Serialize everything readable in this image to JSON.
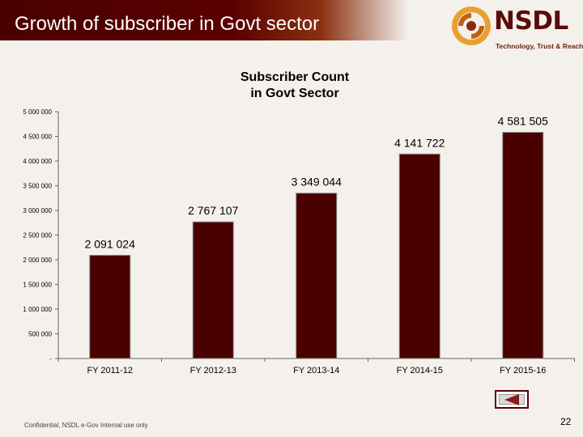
{
  "header": {
    "title": "Growth of subscriber in Govt sector"
  },
  "logo": {
    "name": "NSDL",
    "tagline": "Technology, Trust & Reach"
  },
  "colors": {
    "bar": "#4b0000",
    "header": "#5a0000"
  },
  "chart_data": {
    "type": "bar",
    "title_lines": [
      "Subscriber Count",
      "in Govt Sector"
    ],
    "categories": [
      "FY 2011-12",
      "FY 2012-13",
      "FY 2013-14",
      "FY 2014-15",
      "FY 2015-16"
    ],
    "values": [
      2091024,
      2767107,
      3349044,
      4141722,
      4581505
    ],
    "value_labels": [
      "2 091 024",
      "2 767 107",
      "3 349 044",
      "4 141 722",
      "4 581 505"
    ],
    "ylim": [
      0,
      5000000
    ],
    "yticks": [
      0,
      500000,
      1000000,
      1500000,
      2000000,
      2500000,
      3000000,
      3500000,
      4000000,
      4500000,
      5000000
    ],
    "ytick_labels": [
      "-",
      "500 000",
      "1 000 000",
      "1 500 000",
      "2 000 000",
      "2 500 000",
      "3 000 000",
      "3 500 000",
      "4 000 000",
      "4 500 000",
      "5 000 000"
    ],
    "xlabel": "",
    "ylabel": "",
    "grid": false,
    "legend": "none"
  },
  "footer": {
    "text": "Confidential, NSDL e-Gov Internal use only",
    "page_number": "22"
  },
  "nav": {
    "back_icon": "back-arrow-icon"
  }
}
